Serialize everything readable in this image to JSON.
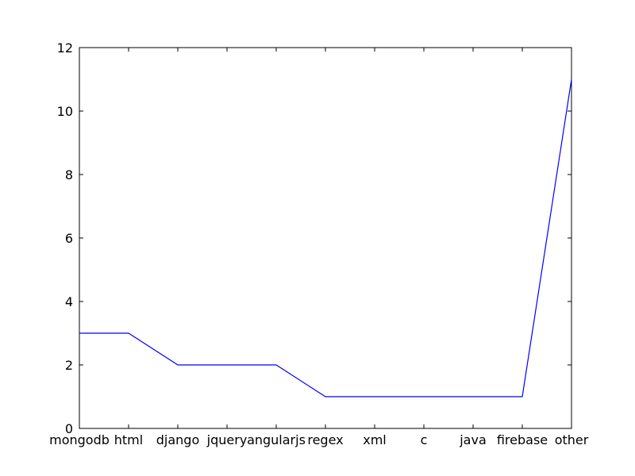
{
  "chart_data": {
    "type": "line",
    "categories": [
      "mongodb",
      "html",
      "django",
      "jquery",
      "angularjs",
      "regex",
      "xml",
      "c",
      "java",
      "firebase",
      "other"
    ],
    "series": [
      {
        "values": [
          3,
          3,
          2,
          2,
          2,
          1,
          1,
          1,
          1,
          1,
          11
        ]
      }
    ],
    "ylim": [
      0,
      12
    ],
    "yticks": [
      0,
      2,
      4,
      6,
      8,
      10,
      12
    ],
    "grid": false,
    "colors": {
      "line": "#0000ff",
      "axes": "#000000",
      "background": "#ffffff"
    }
  }
}
